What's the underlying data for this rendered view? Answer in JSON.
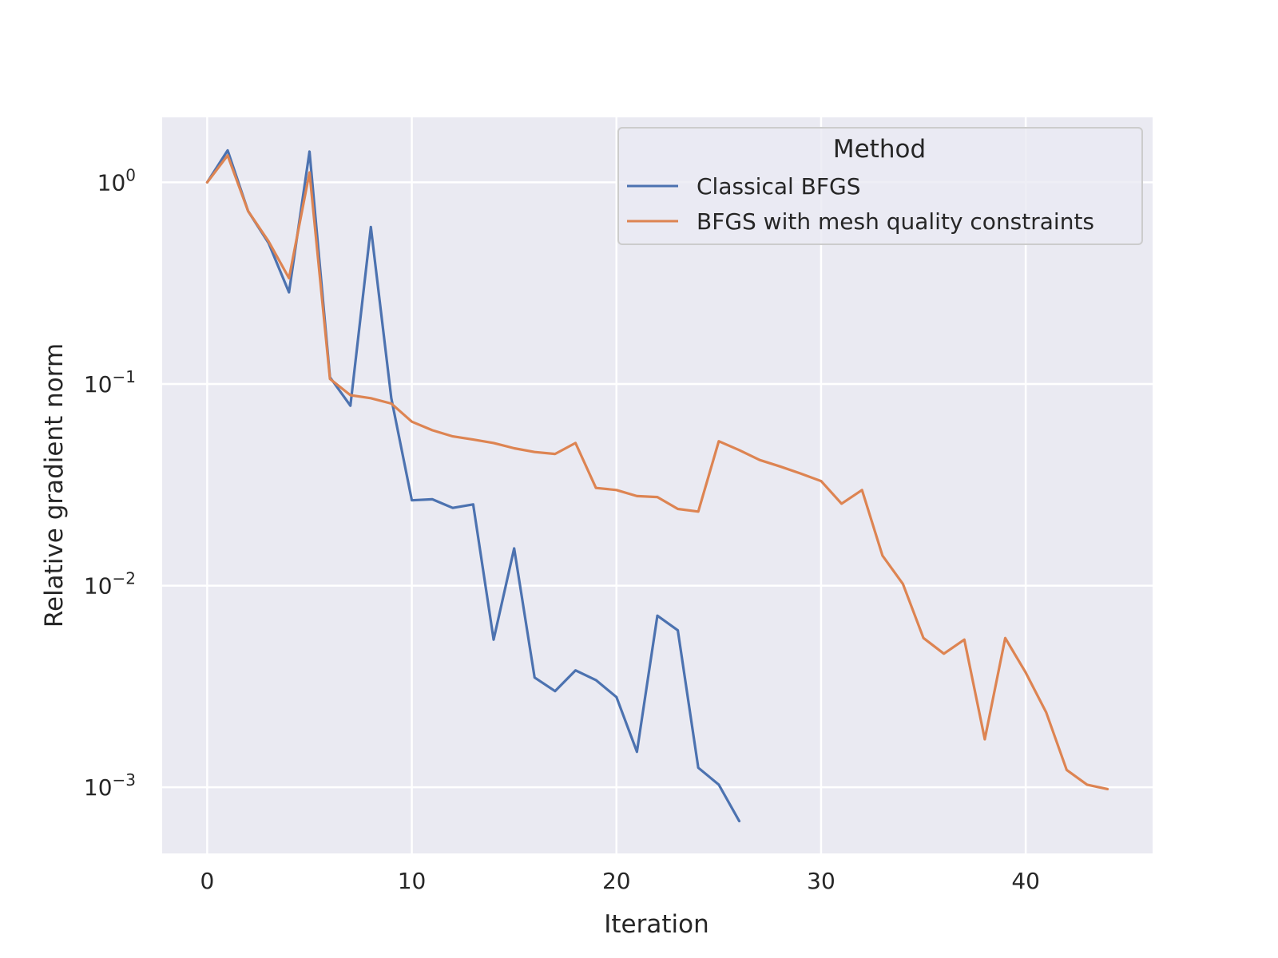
{
  "chart_data": {
    "type": "line",
    "xlabel": "Iteration",
    "ylabel": "Relative gradient norm",
    "yscale": "log",
    "xlim": [
      -2.2,
      46.2
    ],
    "ylim": [
      0.00047,
      2.1
    ],
    "x_ticks": [
      0,
      10,
      20,
      30,
      40
    ],
    "y_ticks": [
      {
        "value": 1,
        "base": "10",
        "exp": "0"
      },
      {
        "value": 0.1,
        "base": "10",
        "exp": "−1"
      },
      {
        "value": 0.01,
        "base": "10",
        "exp": "−2"
      },
      {
        "value": 0.001,
        "base": "10",
        "exp": "−3"
      }
    ],
    "grid": true,
    "legend": {
      "title": "Method",
      "placement": "top-right"
    },
    "series": [
      {
        "name": "Classical BFGS",
        "color": "#4c72b0",
        "x": [
          0,
          1,
          2,
          3,
          4,
          5,
          6,
          7,
          8,
          9,
          10,
          11,
          12,
          13,
          14,
          15,
          16,
          17,
          18,
          19,
          20,
          21,
          22,
          23,
          24,
          25,
          26
        ],
        "y": [
          1.0,
          1.44,
          0.72,
          0.5,
          0.285,
          1.42,
          0.108,
          0.078,
          0.6,
          0.085,
          0.0265,
          0.0268,
          0.0243,
          0.0253,
          0.0054,
          0.0153,
          0.0035,
          0.003,
          0.0038,
          0.0034,
          0.0028,
          0.0015,
          0.0071,
          0.006,
          0.00125,
          0.00103,
          0.00068
        ]
      },
      {
        "name": "BFGS with mesh quality constraints",
        "color": "#dd8452",
        "x": [
          0,
          1,
          2,
          3,
          4,
          5,
          6,
          7,
          8,
          9,
          10,
          11,
          12,
          13,
          14,
          15,
          16,
          17,
          18,
          19,
          20,
          21,
          22,
          23,
          24,
          25,
          26,
          27,
          28,
          29,
          30,
          31,
          32,
          33,
          34,
          35,
          36,
          37,
          38,
          39,
          40,
          41,
          42,
          43,
          44
        ],
        "y": [
          1.0,
          1.36,
          0.72,
          0.51,
          0.335,
          1.12,
          0.106,
          0.088,
          0.085,
          0.08,
          0.065,
          0.059,
          0.055,
          0.053,
          0.051,
          0.048,
          0.046,
          0.045,
          0.051,
          0.0305,
          0.0298,
          0.0278,
          0.0275,
          0.024,
          0.0233,
          0.052,
          0.047,
          0.042,
          0.039,
          0.036,
          0.033,
          0.0255,
          0.0298,
          0.0141,
          0.0102,
          0.0055,
          0.0046,
          0.0054,
          0.00173,
          0.0055,
          0.0037,
          0.00235,
          0.00122,
          0.00103,
          0.00098
        ]
      }
    ]
  }
}
